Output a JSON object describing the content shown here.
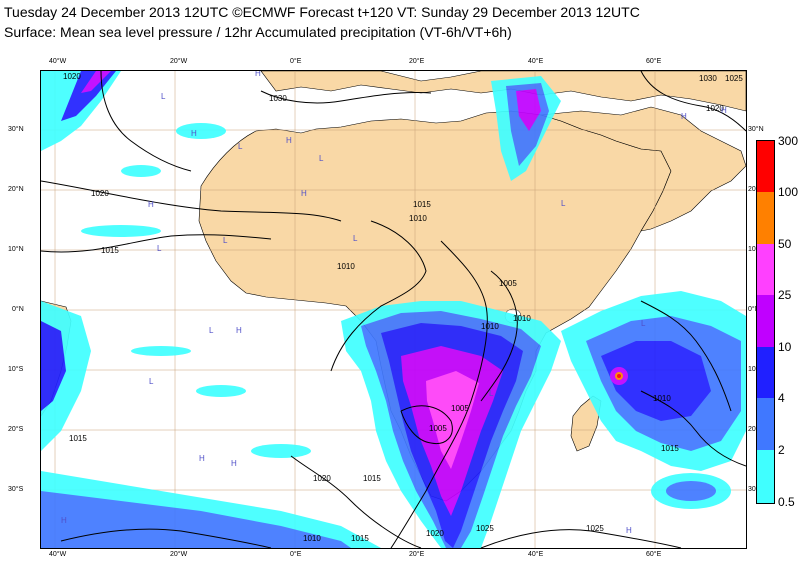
{
  "header": {
    "line1": "Tuesday 24 December 2013 12UTC ©ECMWF Forecast t+120 VT: Sunday 29 December 2013 12UTC",
    "line2": "Surface: Mean sea level pressure / 12hr Accumulated precipitation (VT-6h/VT+6h)"
  },
  "map": {
    "lon_labels": [
      "40°W",
      "20°W",
      "0°E",
      "20°E",
      "40°E",
      "60°E"
    ],
    "lat_labels": [
      "30°N",
      "20°N",
      "10°N",
      "0°N",
      "10°S",
      "20°S",
      "30°S"
    ],
    "lat_labels_right": [
      "30°N",
      "20°N",
      "10°N",
      "0°N",
      "10°S",
      "20°S",
      "30°S"
    ],
    "isobar_labels": [
      "1020",
      "1030",
      "1020",
      "1015",
      "1010",
      "1015",
      "1010",
      "1005",
      "1010",
      "1010",
      "1005",
      "1005",
      "1015",
      "1020",
      "1015",
      "1010",
      "1015",
      "1020",
      "1025",
      "1025",
      "1015",
      "1010",
      "1030",
      "1020",
      "1025"
    ],
    "pressure_marks_high": [
      "H",
      "H",
      "H",
      "H",
      "H",
      "H",
      "H",
      "H",
      "H",
      "H",
      "H",
      "H"
    ],
    "pressure_marks_low": [
      "L",
      "L",
      "L",
      "L",
      "L",
      "L",
      "L",
      "L",
      "L",
      "L",
      "L"
    ],
    "colors": {
      "land": "#f9d8a6",
      "ocean": "#ffffff",
      "grid": "#c8a078",
      "isobar": "#000000",
      "high_low": "#5050c8"
    }
  },
  "legend": {
    "labels": [
      "300",
      "100",
      "50",
      "25",
      "10",
      "4",
      "2",
      "0.5"
    ],
    "colors": [
      "#ff0000",
      "#ff8000",
      "#ff40ff",
      "#c000ff",
      "#2020ff",
      "#4078ff",
      "#00c8ff",
      "#40ffff"
    ]
  }
}
